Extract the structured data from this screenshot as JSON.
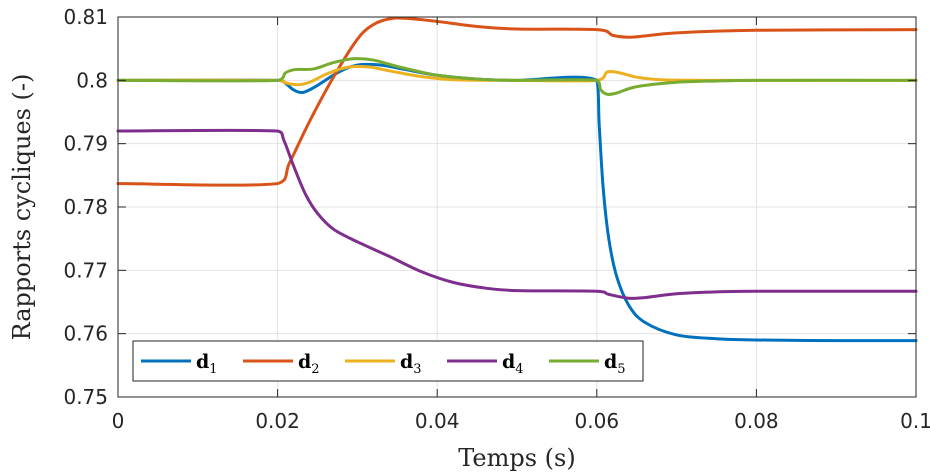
{
  "chart_data": {
    "type": "line",
    "xlabel": "Temps (s)",
    "ylabel": "Rapports cycliques (-)",
    "xlim": [
      0,
      0.1
    ],
    "ylim": [
      0.75,
      0.81
    ],
    "xticks": [
      0,
      0.02,
      0.04,
      0.06,
      0.08,
      0.1
    ],
    "xtick_labels": [
      "0",
      "0.02",
      "0.04",
      "0.06",
      "0.08",
      "0.1"
    ],
    "yticks": [
      0.75,
      0.76,
      0.77,
      0.78,
      0.79,
      0.8,
      0.81
    ],
    "ytick_labels": [
      "0.75",
      "0.76",
      "0.77",
      "0.78",
      "0.79",
      "0.8",
      "0.81"
    ],
    "grid": true,
    "legend_position": "bottom-left",
    "series": [
      {
        "name": "d1",
        "label_main": "d",
        "label_sub": "1",
        "color": "#0072BD",
        "points": [
          [
            0,
            0.8
          ],
          [
            0.02,
            0.8
          ],
          [
            0.021,
            0.7995
          ],
          [
            0.022,
            0.7985
          ],
          [
            0.0232,
            0.7981
          ],
          [
            0.025,
            0.7992
          ],
          [
            0.0275,
            0.8012
          ],
          [
            0.03,
            0.8024
          ],
          [
            0.033,
            0.8024
          ],
          [
            0.036,
            0.8017
          ],
          [
            0.04,
            0.8008
          ],
          [
            0.045,
            0.8002
          ],
          [
            0.05,
            0.8
          ],
          [
            0.06,
            0.8
          ],
          [
            0.0603,
            0.793
          ],
          [
            0.0608,
            0.783
          ],
          [
            0.0615,
            0.775
          ],
          [
            0.0625,
            0.769
          ],
          [
            0.064,
            0.7645
          ],
          [
            0.066,
            0.7618
          ],
          [
            0.07,
            0.7598
          ],
          [
            0.075,
            0.7592
          ],
          [
            0.08,
            0.759
          ],
          [
            0.09,
            0.7589
          ],
          [
            0.1,
            0.7589
          ]
        ]
      },
      {
        "name": "d2",
        "label_main": "d",
        "label_sub": "2",
        "color": "#D95319",
        "points": [
          [
            0,
            0.7837
          ],
          [
            0.02,
            0.7837
          ],
          [
            0.0215,
            0.787
          ],
          [
            0.024,
            0.7935
          ],
          [
            0.027,
            0.8005
          ],
          [
            0.03,
            0.8065
          ],
          [
            0.032,
            0.8088
          ],
          [
            0.034,
            0.8097
          ],
          [
            0.036,
            0.8098
          ],
          [
            0.04,
            0.8093
          ],
          [
            0.045,
            0.8085
          ],
          [
            0.05,
            0.8081
          ],
          [
            0.06,
            0.808
          ],
          [
            0.062,
            0.8071
          ],
          [
            0.064,
            0.8068
          ],
          [
            0.066,
            0.807
          ],
          [
            0.07,
            0.8075
          ],
          [
            0.08,
            0.8079
          ],
          [
            0.1,
            0.808
          ]
        ]
      },
      {
        "name": "d3",
        "label_main": "d",
        "label_sub": "3",
        "color": "#EDB120",
        "points": [
          [
            0,
            0.8
          ],
          [
            0.02,
            0.8
          ],
          [
            0.021,
            0.7996
          ],
          [
            0.0225,
            0.7993
          ],
          [
            0.024,
            0.7997
          ],
          [
            0.0265,
            0.8012
          ],
          [
            0.029,
            0.8021
          ],
          [
            0.0315,
            0.8021
          ],
          [
            0.034,
            0.8015
          ],
          [
            0.038,
            0.8006
          ],
          [
            0.042,
            0.8001
          ],
          [
            0.05,
            0.8
          ],
          [
            0.06,
            0.8
          ],
          [
            0.0613,
            0.8013
          ],
          [
            0.0628,
            0.8012
          ],
          [
            0.065,
            0.8005
          ],
          [
            0.068,
            0.8001
          ],
          [
            0.075,
            0.8
          ],
          [
            0.1,
            0.8
          ]
        ]
      },
      {
        "name": "d4",
        "label_main": "d",
        "label_sub": "4",
        "color": "#7E2F8E",
        "points": [
          [
            0,
            0.792
          ],
          [
            0.02,
            0.792
          ],
          [
            0.0208,
            0.7905
          ],
          [
            0.022,
            0.7865
          ],
          [
            0.0235,
            0.782
          ],
          [
            0.025,
            0.779
          ],
          [
            0.027,
            0.7765
          ],
          [
            0.03,
            0.7745
          ],
          [
            0.034,
            0.7722
          ],
          [
            0.038,
            0.7698
          ],
          [
            0.042,
            0.7681
          ],
          [
            0.046,
            0.7672
          ],
          [
            0.05,
            0.7668
          ],
          [
            0.06,
            0.7667
          ],
          [
            0.0615,
            0.7662
          ],
          [
            0.064,
            0.7656
          ],
          [
            0.066,
            0.7657
          ],
          [
            0.07,
            0.7663
          ],
          [
            0.075,
            0.7666
          ],
          [
            0.08,
            0.7667
          ],
          [
            0.1,
            0.7667
          ]
        ]
      },
      {
        "name": "d5",
        "label_main": "d",
        "label_sub": "5",
        "color": "#77AC30",
        "points": [
          [
            0,
            0.8
          ],
          [
            0.02,
            0.8
          ],
          [
            0.021,
            0.8012
          ],
          [
            0.0222,
            0.8017
          ],
          [
            0.0245,
            0.8018
          ],
          [
            0.027,
            0.8028
          ],
          [
            0.0295,
            0.8034
          ],
          [
            0.032,
            0.8032
          ],
          [
            0.035,
            0.8022
          ],
          [
            0.04,
            0.8008
          ],
          [
            0.045,
            0.8002
          ],
          [
            0.05,
            0.8
          ],
          [
            0.06,
            0.8
          ],
          [
            0.0605,
            0.7985
          ],
          [
            0.0613,
            0.7978
          ],
          [
            0.0625,
            0.798
          ],
          [
            0.065,
            0.799
          ],
          [
            0.07,
            0.7997
          ],
          [
            0.075,
            0.7999
          ],
          [
            0.08,
            0.8
          ],
          [
            0.1,
            0.8
          ]
        ]
      }
    ]
  }
}
